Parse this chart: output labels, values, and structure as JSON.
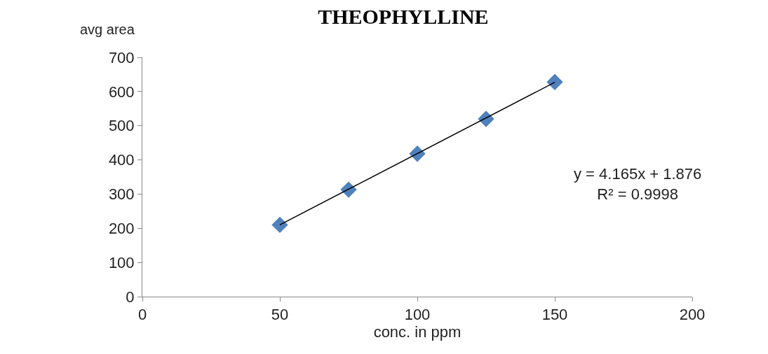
{
  "chart_data": {
    "type": "scatter",
    "title": "THEOPHYLLINE",
    "xlabel": "conc. in ppm",
    "ylabel": "avg area",
    "xlim": [
      0,
      200
    ],
    "xticks": [
      0,
      50,
      100,
      150,
      200
    ],
    "ylim": [
      0,
      700
    ],
    "yticks": [
      0,
      100,
      200,
      300,
      400,
      500,
      600,
      700
    ],
    "series": [
      {
        "color": "#4f81bd",
        "marker": "diamond",
        "x": [
          50,
          75,
          100,
          125,
          150
        ],
        "values": [
          210,
          313,
          418,
          520,
          628
        ]
      },
      {
        "type": "line",
        "color": "#000000",
        "marker": "none",
        "x": [
          50,
          150
        ],
        "values": [
          210,
          627
        ],
        "line_style": "solid"
      }
    ],
    "annotations": [
      "y = 4.165x + 1.876",
      "R² = 0.9998"
    ]
  }
}
